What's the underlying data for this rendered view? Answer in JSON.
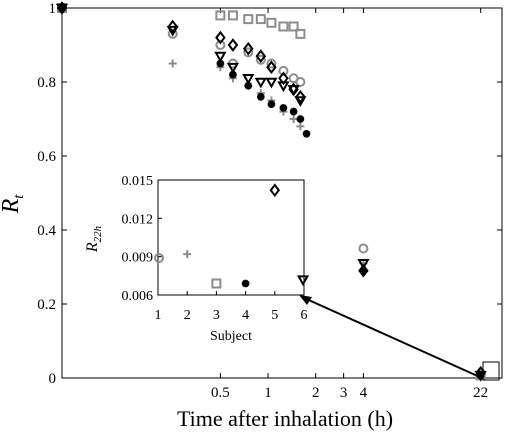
{
  "chart_data": [
    {
      "type": "scatter",
      "xlabel": "Time after inhalation (h)",
      "ylabel_main": "R",
      "ylabel_sub": "t",
      "xscale": "log",
      "xlim": [
        0.05,
        30
      ],
      "ylim": [
        0,
        1
      ],
      "xticks": [
        {
          "value": 0.5,
          "label": "0.5"
        },
        {
          "value": 1,
          "label": "1"
        },
        {
          "value": 2,
          "label": "2"
        },
        {
          "value": 3,
          "label": "3"
        },
        {
          "value": 4,
          "label": "4"
        },
        {
          "value": 22,
          "label": "22"
        }
      ],
      "yticks": [
        {
          "value": 0,
          "label": "0"
        },
        {
          "value": 0.2,
          "label": "0.2"
        },
        {
          "value": 0.4,
          "label": "0.4"
        },
        {
          "value": 0.6,
          "label": "0.6"
        },
        {
          "value": 0.8,
          "label": "0.8"
        },
        {
          "value": 1,
          "label": "1"
        }
      ],
      "grid": false,
      "series": [
        {
          "marker": "circle",
          "color": "#8c8c8c",
          "points": [
            [
              0.05,
              1
            ],
            [
              0.25,
              0.93
            ],
            [
              0.5,
              0.9
            ],
            [
              0.6,
              0.85
            ],
            [
              0.75,
              0.88
            ],
            [
              0.9,
              0.86
            ],
            [
              1.05,
              0.85
            ],
            [
              1.25,
              0.83
            ],
            [
              1.45,
              0.81
            ],
            [
              1.6,
              0.8
            ],
            [
              4,
              0.35
            ],
            [
              22,
              0.009
            ]
          ]
        },
        {
          "marker": "plus",
          "color": "#8c8c8c",
          "points": [
            [
              0.05,
              1
            ],
            [
              0.25,
              0.85
            ],
            [
              0.5,
              0.84
            ],
            [
              0.6,
              0.81
            ],
            [
              0.75,
              0.79
            ],
            [
              0.9,
              0.77
            ],
            [
              1.05,
              0.75
            ],
            [
              1.25,
              0.72
            ],
            [
              1.45,
              0.7
            ],
            [
              1.6,
              0.68
            ],
            [
              4,
              0.31
            ],
            [
              22,
              0.0092
            ]
          ]
        },
        {
          "marker": "square",
          "color": "#8c8c8c",
          "points": [
            [
              0.05,
              1
            ],
            [
              0.5,
              0.98
            ],
            [
              0.6,
              0.98
            ],
            [
              0.75,
              0.97
            ],
            [
              0.9,
              0.97
            ],
            [
              1.05,
              0.96
            ],
            [
              1.25,
              0.95
            ],
            [
              1.45,
              0.95
            ],
            [
              1.6,
              0.93
            ],
            [
              22,
              0.0069
            ]
          ]
        },
        {
          "marker": "star",
          "color": "#000000",
          "points": [
            [
              0.05,
              1
            ],
            [
              0.5,
              0.85
            ],
            [
              0.6,
              0.82
            ],
            [
              0.75,
              0.79
            ],
            [
              0.9,
              0.76
            ],
            [
              1.05,
              0.74
            ],
            [
              1.25,
              0.73
            ],
            [
              1.45,
              0.72
            ],
            [
              1.6,
              0.7
            ],
            [
              1.75,
              0.66
            ],
            [
              4,
              0.29
            ],
            [
              22,
              0.0069
            ]
          ]
        },
        {
          "marker": "diamond",
          "color": "#000000",
          "points": [
            [
              0.05,
              1
            ],
            [
              0.25,
              0.95
            ],
            [
              0.5,
              0.92
            ],
            [
              0.6,
              0.9
            ],
            [
              0.75,
              0.89
            ],
            [
              0.9,
              0.87
            ],
            [
              1.05,
              0.84
            ],
            [
              1.25,
              0.81
            ],
            [
              1.45,
              0.78
            ],
            [
              1.6,
              0.76
            ],
            [
              4,
              0.29
            ],
            [
              22,
              0.0142
            ]
          ]
        },
        {
          "marker": "triangle-down",
          "color": "#000000",
          "points": [
            [
              0.05,
              1
            ],
            [
              0.25,
              0.94
            ],
            [
              0.5,
              0.87
            ],
            [
              0.6,
              0.84
            ],
            [
              0.75,
              0.81
            ],
            [
              0.9,
              0.8
            ],
            [
              1.05,
              0.8
            ],
            [
              1.25,
              0.79
            ],
            [
              1.45,
              0.78
            ],
            [
              1.6,
              0.75
            ],
            [
              4,
              0.31
            ],
            [
              22,
              0.0072
            ]
          ]
        }
      ]
    },
    {
      "type": "scatter",
      "inset": true,
      "xlabel": "Subject",
      "ylabel_main": "R",
      "ylabel_sub": "22h",
      "xlim": [
        1,
        6
      ],
      "ylim": [
        0.006,
        0.015
      ],
      "xticks": [
        1,
        2,
        3,
        4,
        5,
        6
      ],
      "yticks": [
        {
          "value": 0.006,
          "label": "0.006"
        },
        {
          "value": 0.009,
          "label": "0.009"
        },
        {
          "value": 0.012,
          "label": "0.012"
        },
        {
          "value": 0.015,
          "label": "0.015"
        }
      ],
      "points": [
        {
          "subject": 1,
          "value": 0.0089,
          "marker": "circle",
          "color": "#8c8c8c"
        },
        {
          "subject": 2,
          "value": 0.0092,
          "marker": "plus",
          "color": "#8c8c8c"
        },
        {
          "subject": 3,
          "value": 0.0069,
          "marker": "square",
          "color": "#8c8c8c"
        },
        {
          "subject": 4,
          "value": 0.0069,
          "marker": "star",
          "color": "#000000"
        },
        {
          "subject": 5,
          "value": 0.0142,
          "marker": "diamond",
          "color": "#000000"
        },
        {
          "subject": 6,
          "value": 0.0072,
          "marker": "triangle-down",
          "color": "#000000"
        }
      ]
    }
  ]
}
